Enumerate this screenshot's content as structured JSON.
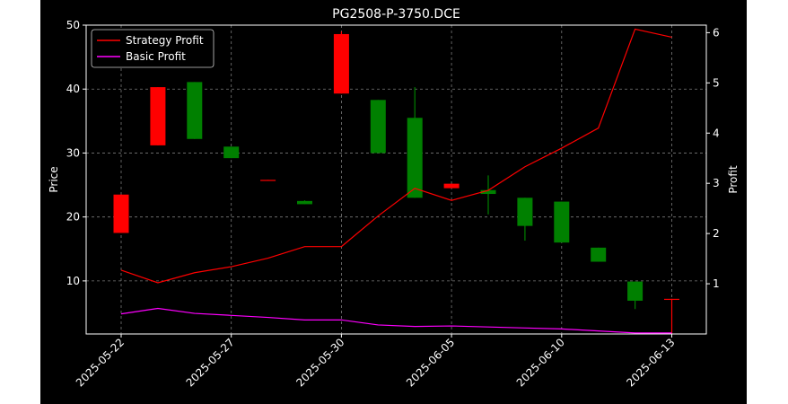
{
  "chart_data": {
    "type": "candlestick+line",
    "title": "PG2508-P-3750.DCE",
    "ylabel_left": "Price",
    "ylabel_right": "Profit",
    "ylim_left": [
      1.7,
      50
    ],
    "ylim_right": [
      0.0,
      6.15
    ],
    "yticks_left": [
      10,
      20,
      30,
      40,
      50
    ],
    "yticks_right": [
      1,
      2,
      3,
      4,
      5,
      6
    ],
    "xtick_labels": [
      "2025-05-22",
      "2025-05-27",
      "2025-05-30",
      "2025-06-05",
      "2025-06-10",
      "2025-06-13"
    ],
    "xtick_indices": [
      0,
      3,
      6,
      9,
      12,
      15
    ],
    "grid": true,
    "legend_position": "upper left",
    "colors": {
      "up": "#008000",
      "down": "#ff0000",
      "strategy": "#ff0000",
      "basic": "#ff00ff",
      "background": "#000000",
      "text": "#ffffff"
    },
    "candles": [
      {
        "open": 23.5,
        "high": 23.5,
        "low": 17.5,
        "close": 17.5
      },
      {
        "open": 40.3,
        "high": 40.3,
        "low": 31.2,
        "close": 31.2
      },
      {
        "open": 32.2,
        "high": 41.1,
        "low": 32.2,
        "close": 41.1
      },
      {
        "open": 29.2,
        "high": 31.0,
        "low": 29.2,
        "close": 31.0
      },
      {
        "open": 25.8,
        "high": 25.8,
        "low": 25.7,
        "close": 25.7
      },
      {
        "open": 22.0,
        "high": 22.6,
        "low": 22.0,
        "close": 22.5
      },
      {
        "open": 48.6,
        "high": 49.0,
        "low": 39.3,
        "close": 39.3
      },
      {
        "open": 30.0,
        "high": 38.3,
        "low": 30.0,
        "close": 38.3
      },
      {
        "open": 23.0,
        "high": 40.3,
        "low": 23.0,
        "close": 35.5
      },
      {
        "open": 25.2,
        "high": 25.2,
        "low": 24.5,
        "close": 24.5
      },
      {
        "open": 23.6,
        "high": 26.5,
        "low": 20.4,
        "close": 24.2
      },
      {
        "open": 18.6,
        "high": 23.0,
        "low": 16.3,
        "close": 23.0
      },
      {
        "open": 16.0,
        "high": 22.4,
        "low": 16.0,
        "close": 22.4
      },
      {
        "open": 13.0,
        "high": 15.2,
        "low": 13.0,
        "close": 15.2
      },
      {
        "open": 6.9,
        "high": 9.9,
        "low": 5.6,
        "close": 9.9
      },
      {
        "open": 7.2,
        "high": 7.2,
        "low": 1.7,
        "close": 7.1
      }
    ],
    "series": [
      {
        "name": "Strategy Profit",
        "values": [
          1.27,
          1.02,
          1.22,
          1.34,
          1.51,
          1.74,
          1.74,
          2.35,
          2.9,
          2.66,
          2.86,
          3.33,
          3.7,
          4.1,
          6.07,
          5.91
        ]
      },
      {
        "name": "Basic Profit",
        "values": [
          0.4,
          0.51,
          0.41,
          0.37,
          0.33,
          0.28,
          0.28,
          0.18,
          0.15,
          0.16,
          0.14,
          0.12,
          0.1,
          0.06,
          0.02,
          0.02
        ]
      }
    ]
  }
}
